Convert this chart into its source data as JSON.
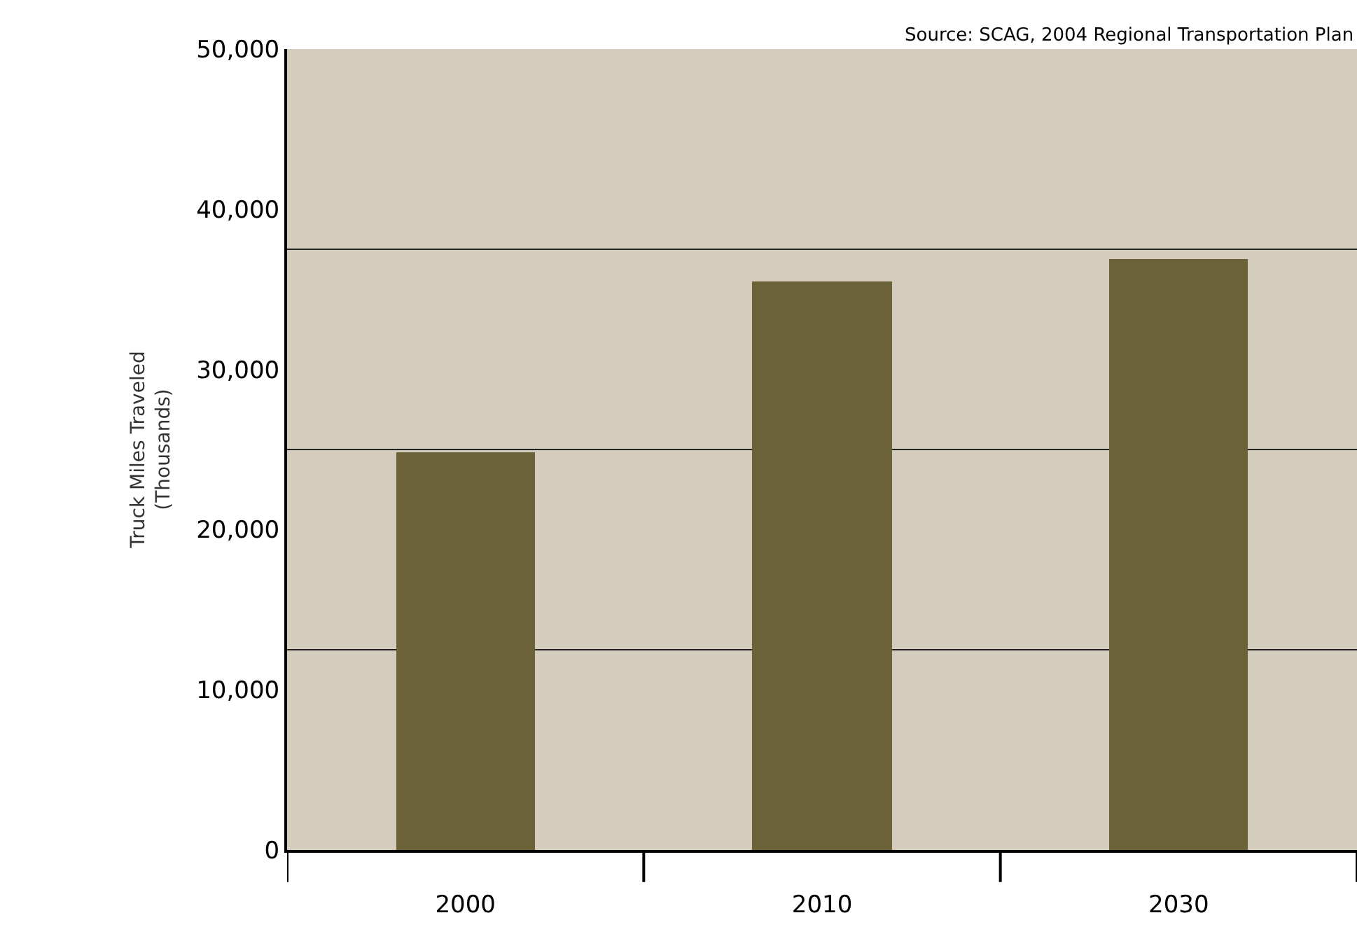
{
  "chart_data": {
    "type": "bar",
    "ylabel": "Truck Miles Traveled\n(Thousands)",
    "annotations": [
      "Source: SCAG, 2004 Regional Transportation Plan"
    ],
    "categories": [
      "2000",
      "2010",
      "2030"
    ],
    "values": [
      24800,
      35500,
      36900
    ],
    "color": "#6b6238",
    "ylim": [
      0,
      50000
    ],
    "yticks": [
      {
        "value": 0,
        "label": "0"
      },
      {
        "value": 10000,
        "label": "10,000"
      },
      {
        "value": 20000,
        "label": "20,000"
      },
      {
        "value": 30000,
        "label": "30,000"
      },
      {
        "value": 40000,
        "label": "40,000"
      },
      {
        "value": 50000,
        "label": "50,000"
      }
    ],
    "ref_lines": [
      {
        "axis": "y",
        "value": 12500,
        "color": "#222222"
      },
      {
        "axis": "y",
        "value": 25000,
        "color": "#222222"
      },
      {
        "axis": "y",
        "value": 37500,
        "color": "#222222"
      }
    ]
  }
}
